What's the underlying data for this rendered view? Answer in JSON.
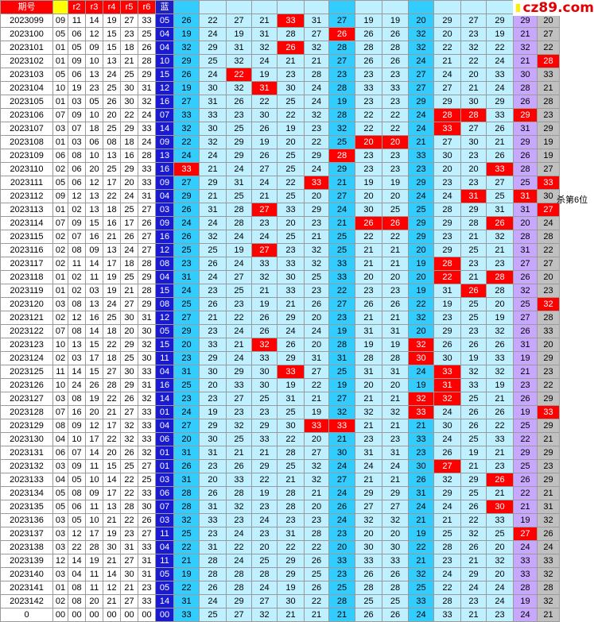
{
  "brand": {
    "logo_text": "cz89.com"
  },
  "note": {
    "text": "杀第6位"
  },
  "header": [
    "期号",
    "",
    "r2",
    "r3",
    "r4",
    "r5",
    "r6",
    "蓝",
    "",
    "",
    "",
    "",
    "",
    "",
    "",
    "",
    "",
    "",
    "",
    "",
    "",
    "",
    "",
    ""
  ],
  "rows": [
    {
      "p": "2023099",
      "r": [
        "09",
        "11",
        "14",
        "19",
        "27",
        "33"
      ],
      "b": "05",
      "v": [
        26,
        22,
        27,
        21,
        33,
        31,
        27,
        19,
        19,
        20,
        29,
        27,
        29,
        29,
        20
      ],
      "h": [
        4
      ]
    },
    {
      "p": "2023100",
      "r": [
        "05",
        "06",
        "12",
        "15",
        "23",
        "25"
      ],
      "b": "04",
      "v": [
        19,
        24,
        19,
        31,
        28,
        27,
        26,
        26,
        26,
        32,
        20,
        23,
        19,
        21,
        27
      ],
      "h": [
        6
      ]
    },
    {
      "p": "2023101",
      "r": [
        "01",
        "05",
        "09",
        "15",
        "18",
        "26"
      ],
      "b": "04",
      "v": [
        32,
        29,
        31,
        32,
        26,
        32,
        28,
        28,
        28,
        32,
        22,
        32,
        22,
        32,
        22
      ],
      "h": [
        4
      ]
    },
    {
      "p": "2023102",
      "r": [
        "01",
        "09",
        "10",
        "13",
        "21",
        "28"
      ],
      "b": "10",
      "v": [
        29,
        25,
        32,
        24,
        21,
        21,
        27,
        26,
        26,
        24,
        21,
        22,
        24,
        21,
        28
      ],
      "h": [
        14
      ]
    },
    {
      "p": "2023103",
      "r": [
        "05",
        "06",
        "13",
        "24",
        "25",
        "29"
      ],
      "b": "15",
      "v": [
        26,
        24,
        22,
        19,
        23,
        28,
        23,
        23,
        23,
        27,
        24,
        20,
        33,
        30,
        33
      ],
      "h": [
        2
      ]
    },
    {
      "p": "2023104",
      "r": [
        "10",
        "19",
        "23",
        "25",
        "30",
        "31"
      ],
      "b": "12",
      "v": [
        19,
        30,
        32,
        31,
        30,
        24,
        28,
        33,
        33,
        27,
        27,
        21,
        24,
        28,
        21
      ],
      "h": [
        3
      ]
    },
    {
      "p": "2023105",
      "r": [
        "01",
        "03",
        "05",
        "26",
        "30",
        "32"
      ],
      "b": "16",
      "v": [
        27,
        31,
        26,
        22,
        25,
        24,
        19,
        23,
        23,
        29,
        29,
        30,
        29,
        26,
        28
      ],
      "h": []
    },
    {
      "p": "2023106",
      "r": [
        "07",
        "09",
        "10",
        "20",
        "22",
        "24"
      ],
      "b": "07",
      "v": [
        33,
        33,
        23,
        30,
        22,
        32,
        28,
        22,
        22,
        24,
        28,
        28,
        33,
        29,
        23
      ],
      "h": [
        10,
        11,
        13
      ]
    },
    {
      "p": "2023107",
      "r": [
        "03",
        "07",
        "18",
        "25",
        "29",
        "33"
      ],
      "b": "14",
      "v": [
        32,
        30,
        25,
        26,
        19,
        23,
        32,
        22,
        22,
        24,
        33,
        27,
        26,
        31,
        29
      ],
      "h": [
        10
      ]
    },
    {
      "p": "2023108",
      "r": [
        "01",
        "03",
        "06",
        "08",
        "18",
        "24"
      ],
      "b": "09",
      "v": [
        22,
        32,
        29,
        19,
        20,
        22,
        25,
        20,
        20,
        21,
        27,
        30,
        21,
        29,
        19
      ],
      "h": [
        7,
        8
      ]
    },
    {
      "p": "2023109",
      "r": [
        "06",
        "08",
        "10",
        "13",
        "16",
        "28"
      ],
      "b": "13",
      "v": [
        24,
        24,
        29,
        26,
        25,
        29,
        28,
        23,
        23,
        33,
        30,
        23,
        26,
        26,
        19
      ],
      "h": [
        6
      ]
    },
    {
      "p": "2023110",
      "r": [
        "02",
        "06",
        "20",
        "25",
        "29",
        "33"
      ],
      "b": "16",
      "v": [
        33,
        21,
        24,
        27,
        25,
        24,
        29,
        23,
        23,
        23,
        20,
        20,
        33,
        28,
        27
      ],
      "h": [
        0,
        12
      ]
    },
    {
      "p": "2023111",
      "r": [
        "05",
        "06",
        "12",
        "17",
        "20",
        "33"
      ],
      "b": "09",
      "v": [
        27,
        29,
        31,
        24,
        22,
        33,
        21,
        19,
        19,
        29,
        23,
        23,
        27,
        25,
        33
      ],
      "h": [
        5,
        14
      ]
    },
    {
      "p": "2023112",
      "r": [
        "09",
        "12",
        "13",
        "22",
        "24",
        "31"
      ],
      "b": "04",
      "v": [
        29,
        21,
        25,
        21,
        25,
        20,
        27,
        20,
        20,
        24,
        24,
        31,
        25,
        31,
        30
      ],
      "h": [
        11,
        13
      ]
    },
    {
      "p": "2023113",
      "r": [
        "01",
        "02",
        "13",
        "18",
        "25",
        "27"
      ],
      "b": "03",
      "v": [
        26,
        31,
        28,
        27,
        33,
        29,
        24,
        30,
        25,
        25,
        28,
        29,
        31,
        31,
        27
      ],
      "h": [
        3,
        14
      ]
    },
    {
      "p": "2023114",
      "r": [
        "07",
        "09",
        "15",
        "16",
        "17",
        "26"
      ],
      "b": "09",
      "v": [
        24,
        24,
        28,
        23,
        20,
        23,
        21,
        26,
        26,
        29,
        29,
        28,
        26,
        20,
        24
      ],
      "h": [
        7,
        8,
        12
      ]
    },
    {
      "p": "2023115",
      "r": [
        "02",
        "07",
        "16",
        "21",
        "26",
        "27"
      ],
      "b": "16",
      "v": [
        26,
        32,
        24,
        24,
        25,
        21,
        25,
        22,
        22,
        29,
        23,
        21,
        32,
        28,
        28
      ],
      "h": []
    },
    {
      "p": "2023116",
      "r": [
        "02",
        "08",
        "09",
        "13",
        "24",
        "27"
      ],
      "b": "12",
      "v": [
        25,
        25,
        19,
        27,
        23,
        32,
        25,
        21,
        21,
        20,
        29,
        25,
        21,
        31,
        22
      ],
      "h": [
        3
      ]
    },
    {
      "p": "2023117",
      "r": [
        "02",
        "11",
        "14",
        "17",
        "18",
        "28"
      ],
      "b": "08",
      "v": [
        23,
        26,
        24,
        33,
        33,
        32,
        33,
        21,
        21,
        19,
        28,
        23,
        23,
        27,
        27
      ],
      "h": [
        10
      ]
    },
    {
      "p": "2023118",
      "r": [
        "01",
        "02",
        "11",
        "19",
        "25",
        "29"
      ],
      "b": "04",
      "v": [
        31,
        24,
        27,
        32,
        30,
        25,
        33,
        20,
        20,
        20,
        22,
        21,
        28,
        26,
        20
      ],
      "h": [
        10,
        12
      ]
    },
    {
      "p": "2023119",
      "r": [
        "01",
        "02",
        "03",
        "19",
        "21",
        "28"
      ],
      "b": "15",
      "v": [
        24,
        23,
        25,
        21,
        33,
        23,
        22,
        23,
        23,
        19,
        31,
        26,
        28,
        32,
        23
      ],
      "h": [
        11
      ]
    },
    {
      "p": "2023120",
      "r": [
        "03",
        "08",
        "13",
        "24",
        "27",
        "29"
      ],
      "b": "08",
      "v": [
        25,
        26,
        23,
        19,
        21,
        26,
        27,
        26,
        26,
        22,
        19,
        25,
        20,
        25,
        32
      ],
      "h": [
        14
      ]
    },
    {
      "p": "2023121",
      "r": [
        "02",
        "12",
        "16",
        "25",
        "30",
        "31"
      ],
      "b": "12",
      "v": [
        27,
        21,
        22,
        26,
        29,
        20,
        23,
        21,
        21,
        32,
        23,
        25,
        19,
        27,
        28
      ],
      "h": []
    },
    {
      "p": "2023122",
      "r": [
        "07",
        "08",
        "14",
        "18",
        "20",
        "30"
      ],
      "b": "05",
      "v": [
        29,
        23,
        24,
        26,
        24,
        24,
        19,
        31,
        31,
        20,
        29,
        23,
        32,
        26,
        33
      ],
      "h": []
    },
    {
      "p": "2023123",
      "r": [
        "10",
        "13",
        "15",
        "22",
        "29",
        "32"
      ],
      "b": "15",
      "v": [
        20,
        33,
        21,
        32,
        26,
        20,
        28,
        19,
        19,
        32,
        26,
        26,
        26,
        31,
        20
      ],
      "h": [
        3,
        9
      ]
    },
    {
      "p": "2023124",
      "r": [
        "02",
        "03",
        "17",
        "18",
        "25",
        "30"
      ],
      "b": "11",
      "v": [
        23,
        29,
        24,
        33,
        29,
        31,
        31,
        28,
        28,
        30,
        30,
        19,
        33,
        19,
        29
      ],
      "h": [
        9
      ]
    },
    {
      "p": "2023125",
      "r": [
        "11",
        "14",
        "15",
        "27",
        "30",
        "33"
      ],
      "b": "04",
      "v": [
        31,
        30,
        29,
        30,
        33,
        27,
        25,
        31,
        31,
        24,
        33,
        32,
        32,
        21,
        23
      ],
      "h": [
        4,
        10
      ]
    },
    {
      "p": "2023126",
      "r": [
        "10",
        "24",
        "26",
        "28",
        "29",
        "31"
      ],
      "b": "16",
      "v": [
        25,
        20,
        33,
        30,
        19,
        22,
        19,
        20,
        20,
        19,
        31,
        33,
        19,
        23,
        22
      ],
      "h": [
        10
      ]
    },
    {
      "p": "2023127",
      "r": [
        "03",
        "08",
        "19",
        "22",
        "26",
        "32"
      ],
      "b": "14",
      "v": [
        23,
        23,
        27,
        25,
        31,
        21,
        27,
        21,
        21,
        32,
        32,
        25,
        21,
        26,
        29
      ],
      "h": [
        9,
        10
      ]
    },
    {
      "p": "2023128",
      "r": [
        "07",
        "16",
        "20",
        "21",
        "27",
        "33"
      ],
      "b": "01",
      "v": [
        24,
        19,
        23,
        23,
        25,
        19,
        32,
        32,
        32,
        33,
        24,
        26,
        26,
        19,
        33
      ],
      "h": [
        9,
        14
      ]
    },
    {
      "p": "2023129",
      "r": [
        "08",
        "09",
        "12",
        "17",
        "32",
        "33"
      ],
      "b": "04",
      "v": [
        27,
        29,
        32,
        29,
        30,
        33,
        33,
        21,
        21,
        21,
        30,
        26,
        22,
        25,
        29
      ],
      "h": [
        5,
        6
      ]
    },
    {
      "p": "2023130",
      "r": [
        "04",
        "10",
        "17",
        "22",
        "32",
        "33"
      ],
      "b": "06",
      "v": [
        20,
        30,
        25,
        33,
        22,
        20,
        21,
        23,
        23,
        33,
        24,
        25,
        33,
        22,
        21
      ],
      "h": []
    },
    {
      "p": "2023131",
      "r": [
        "06",
        "07",
        "14",
        "20",
        "26",
        "32"
      ],
      "b": "01",
      "v": [
        31,
        31,
        21,
        21,
        28,
        27,
        30,
        31,
        31,
        23,
        26,
        19,
        21,
        29,
        29
      ],
      "h": []
    },
    {
      "p": "2023132",
      "r": [
        "03",
        "09",
        "11",
        "15",
        "25",
        "27"
      ],
      "b": "01",
      "v": [
        26,
        23,
        26,
        29,
        25,
        32,
        24,
        24,
        24,
        30,
        27,
        21,
        23,
        25,
        23
      ],
      "h": [
        10
      ]
    },
    {
      "p": "2023133",
      "r": [
        "04",
        "05",
        "10",
        "14",
        "22",
        "25"
      ],
      "b": "03",
      "v": [
        31,
        20,
        33,
        22,
        21,
        32,
        27,
        21,
        21,
        26,
        32,
        29,
        26,
        26,
        29
      ],
      "h": [
        12
      ]
    },
    {
      "p": "2023134",
      "r": [
        "05",
        "08",
        "09",
        "17",
        "22",
        "33"
      ],
      "b": "06",
      "v": [
        28,
        26,
        28,
        19,
        28,
        21,
        24,
        29,
        29,
        31,
        29,
        25,
        21,
        22,
        21
      ],
      "h": []
    },
    {
      "p": "2023135",
      "r": [
        "05",
        "06",
        "11",
        "13",
        "28",
        "30"
      ],
      "b": "07",
      "v": [
        28,
        31,
        32,
        23,
        28,
        20,
        26,
        27,
        27,
        24,
        24,
        26,
        30,
        21,
        31
      ],
      "h": [
        12
      ]
    },
    {
      "p": "2023136",
      "r": [
        "03",
        "05",
        "10",
        "21",
        "22",
        "26"
      ],
      "b": "03",
      "v": [
        32,
        33,
        23,
        24,
        23,
        23,
        24,
        32,
        32,
        21,
        21,
        22,
        33,
        19,
        32
      ],
      "h": []
    },
    {
      "p": "2023137",
      "r": [
        "03",
        "12",
        "17",
        "19",
        "23",
        "27"
      ],
      "b": "11",
      "v": [
        25,
        23,
        24,
        23,
        31,
        28,
        23,
        20,
        20,
        19,
        25,
        32,
        25,
        27,
        26
      ],
      "h": [
        13
      ]
    },
    {
      "p": "2023138",
      "r": [
        "03",
        "22",
        "28",
        "30",
        "31",
        "33"
      ],
      "b": "04",
      "v": [
        22,
        31,
        22,
        20,
        22,
        22,
        20,
        30,
        30,
        22,
        28,
        26,
        20,
        24,
        24
      ],
      "h": []
    },
    {
      "p": "2023139",
      "r": [
        "12",
        "14",
        "19",
        "21",
        "27",
        "31"
      ],
      "b": "11",
      "v": [
        21,
        28,
        24,
        25,
        29,
        26,
        33,
        33,
        33,
        21,
        23,
        21,
        32,
        33,
        33
      ],
      "h": []
    },
    {
      "p": "2023140",
      "r": [
        "03",
        "04",
        "11",
        "14",
        "30",
        "31"
      ],
      "b": "05",
      "v": [
        19,
        28,
        28,
        28,
        29,
        25,
        23,
        26,
        26,
        32,
        24,
        29,
        20,
        33,
        32
      ],
      "h": []
    },
    {
      "p": "2023141",
      "r": [
        "01",
        "08",
        "11",
        "12",
        "21",
        "23"
      ],
      "b": "05",
      "v": [
        22,
        26,
        28,
        24,
        19,
        26,
        25,
        28,
        28,
        25,
        22,
        24,
        24,
        28,
        28
      ],
      "h": []
    },
    {
      "p": "2023142",
      "r": [
        "02",
        "08",
        "20",
        "21",
        "27",
        "33"
      ],
      "b": "14",
      "v": [
        31,
        24,
        29,
        27,
        30,
        22,
        28,
        25,
        25,
        33,
        28,
        23,
        24,
        19,
        32
      ],
      "h": []
    },
    {
      "p": "0",
      "r": [
        "00",
        "00",
        "00",
        "00",
        "00",
        "00"
      ],
      "b": "00",
      "v": [
        33,
        25,
        27,
        32,
        21,
        21,
        21,
        26,
        26,
        24,
        33,
        21,
        23,
        24,
        21
      ],
      "h": []
    }
  ]
}
